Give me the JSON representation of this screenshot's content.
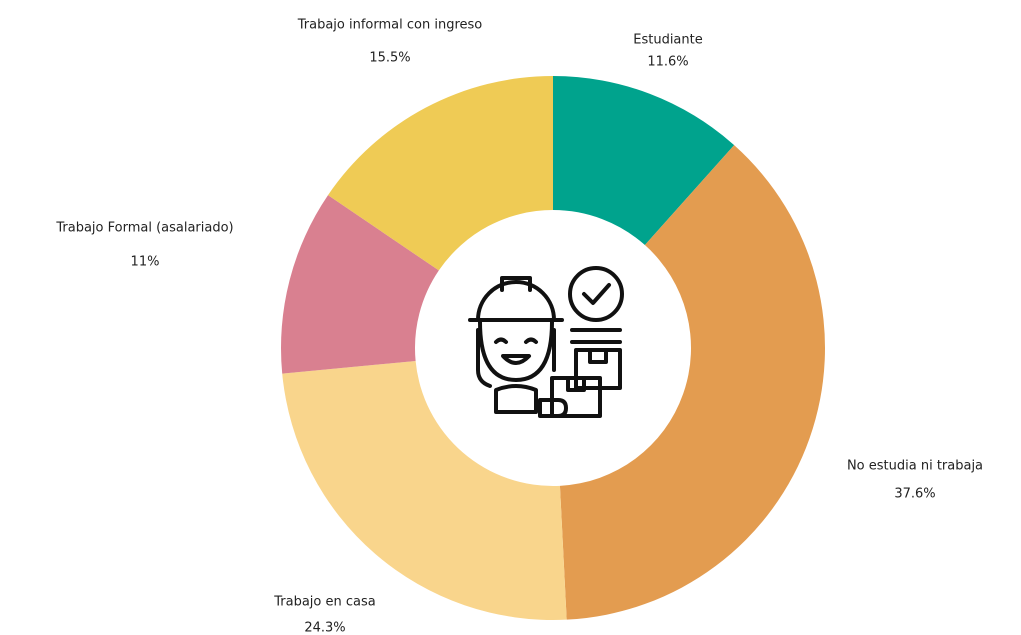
{
  "chart_data": {
    "type": "donut",
    "categories": [
      "Estudiante",
      "No estudia ni trabaja",
      "Trabajo en casa",
      "Trabajo Formal (asalariado)",
      "Trabajo informal con ingreso"
    ],
    "values": [
      11.6,
      37.6,
      24.3,
      11,
      15.5
    ],
    "value_labels": [
      "11.6%",
      "37.6%",
      "24.3%",
      "11%",
      "15.5%"
    ],
    "colors": [
      "#00a38d",
      "#e39c50",
      "#f9d58c",
      "#d98090",
      "#efcb55"
    ]
  }
}
